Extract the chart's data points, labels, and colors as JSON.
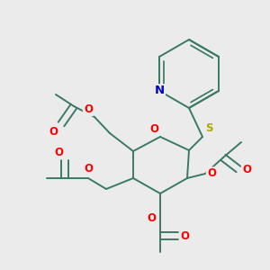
{
  "bg": "#ebebeb",
  "bond_color": "#3a7a65",
  "bond_lw": 1.4,
  "atom_colors": {
    "O": "#ff0000",
    "N": "#0000cc",
    "S": "#aaaa00"
  },
  "fs": 8.5,
  "fig": [
    3.0,
    3.0
  ],
  "dpi": 100
}
